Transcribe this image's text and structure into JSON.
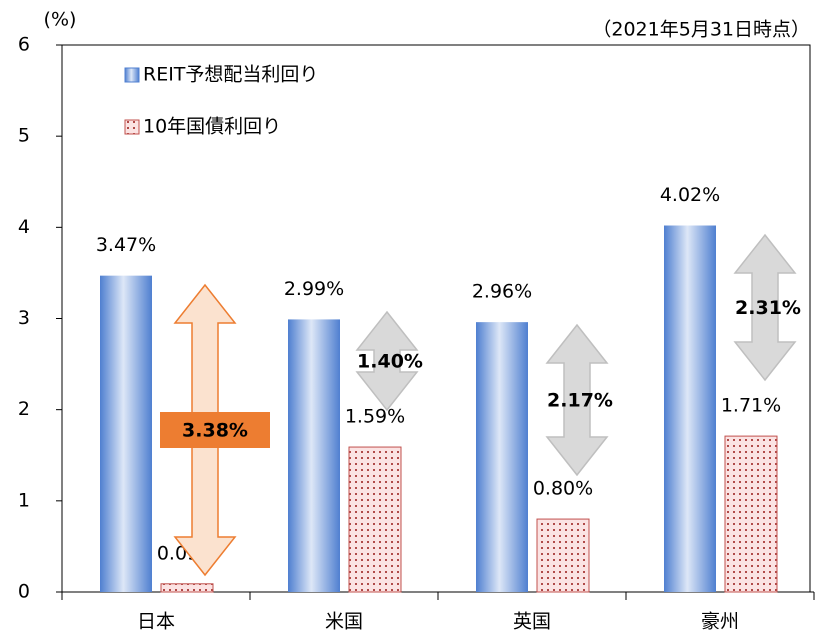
{
  "chart_data": {
    "type": "bar",
    "y_label": "(%)",
    "note": "（2021年5月31日時点）",
    "categories": [
      "日本",
      "米国",
      "英国",
      "豪州"
    ],
    "series": [
      {
        "name": "REIT予想配当利回り",
        "color": "#5b8ad6",
        "values": [
          3.47,
          2.99,
          2.96,
          4.02
        ],
        "value_labels": [
          "3.47%",
          "2.99%",
          "2.96%",
          "4.02%"
        ]
      },
      {
        "name": "10年国債利回り",
        "color": "#c0504d",
        "values": [
          0.09,
          1.59,
          0.8,
          1.71
        ],
        "value_labels": [
          "0.09%",
          "1.59%",
          "0.80%",
          "1.71%"
        ]
      }
    ],
    "spreads": {
      "values": [
        3.38,
        1.4,
        2.17,
        2.31
      ],
      "value_labels": [
        "3.38%",
        "1.40%",
        "2.17%",
        "2.31%"
      ],
      "colors": [
        "#ed7d31",
        "#d9d9d9",
        "#d9d9d9",
        "#d9d9d9"
      ]
    },
    "ylim": [
      0,
      6
    ],
    "yticks": [
      0,
      1,
      2,
      3,
      4,
      5,
      6
    ],
    "grid": false,
    "legend": "upper left"
  }
}
